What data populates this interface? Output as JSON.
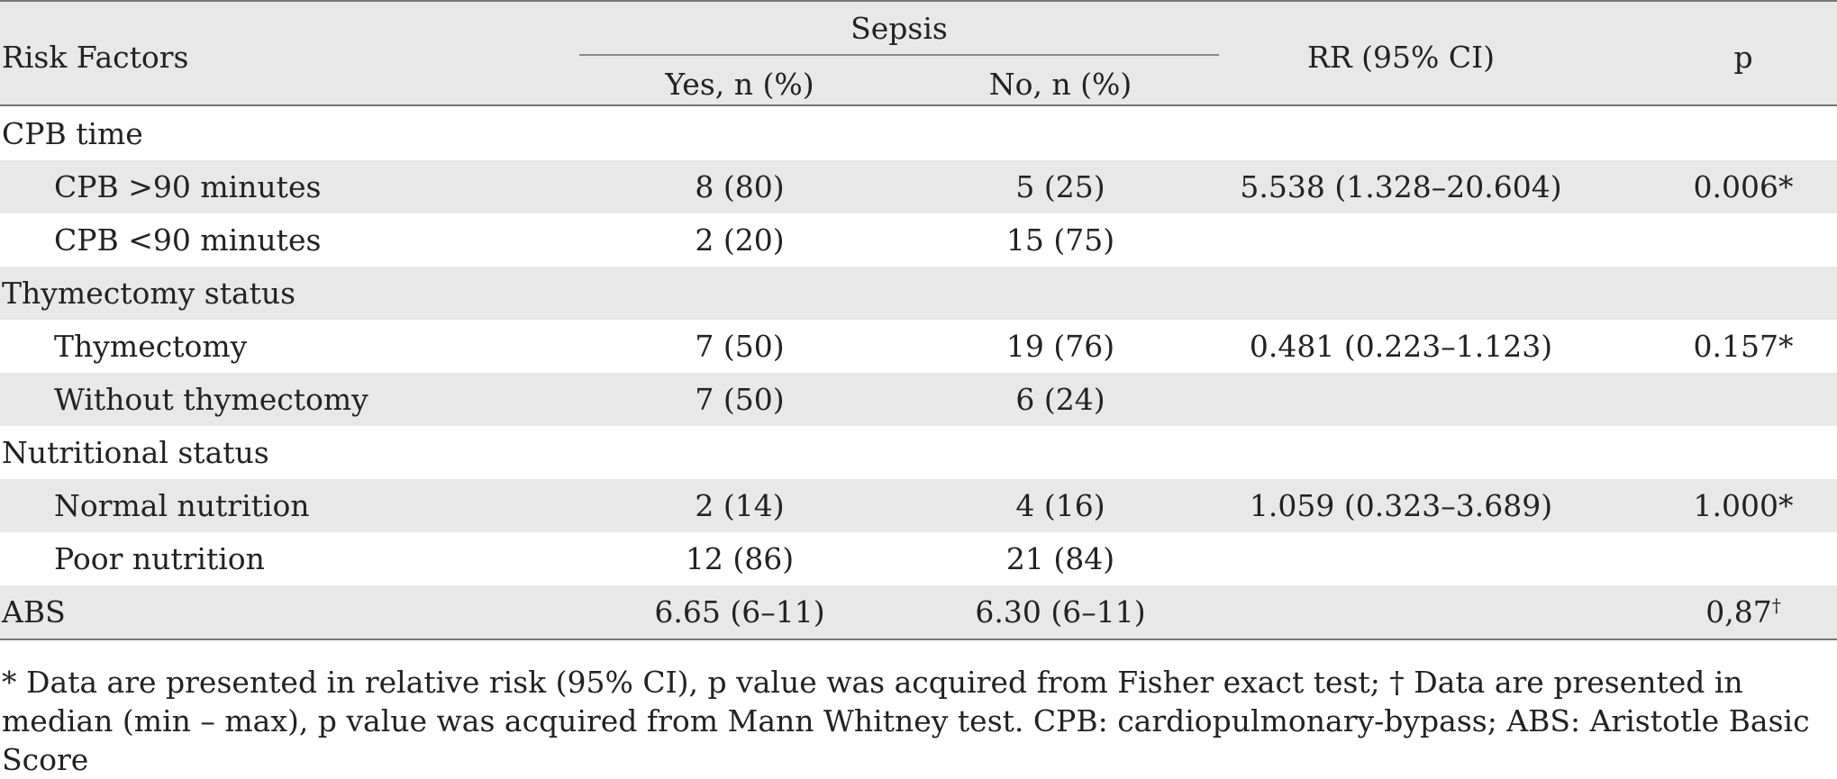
{
  "header": {
    "risk_factors": "Risk Factors",
    "sepsis": "Sepsis",
    "yes": "Yes, n (%)",
    "no": "No, n (%)",
    "rr": "RR (95% CI)",
    "p": "p"
  },
  "rows": [
    {
      "label": "CPB time",
      "yes": "",
      "no": "",
      "rr": "",
      "p": "",
      "p_mark": ""
    },
    {
      "label": "CPB >90 minutes",
      "yes": "8 (80)",
      "no": "5 (25)",
      "rr": "5.538 (1.328–20.604)",
      "p": "0.006*",
      "p_mark": ""
    },
    {
      "label": "CPB <90 minutes",
      "yes": "2 (20)",
      "no": "15 (75)",
      "rr": "",
      "p": "",
      "p_mark": ""
    },
    {
      "label": "Thymectomy status",
      "yes": "",
      "no": "",
      "rr": "",
      "p": "",
      "p_mark": ""
    },
    {
      "label": "Thymectomy",
      "yes": "7 (50)",
      "no": "19 (76)",
      "rr": "0.481 (0.223–1.123)",
      "p": "0.157*",
      "p_mark": ""
    },
    {
      "label": "Without thymectomy",
      "yes": "7 (50)",
      "no": "6 (24)",
      "rr": "",
      "p": "",
      "p_mark": ""
    },
    {
      "label": "Nutritional status",
      "yes": "",
      "no": "",
      "rr": "",
      "p": "",
      "p_mark": ""
    },
    {
      "label": "Normal nutrition",
      "yes": "2 (14)",
      "no": "4 (16)",
      "rr": "1.059 (0.323–3.689)",
      "p": "1.000*",
      "p_mark": ""
    },
    {
      "label": "Poor nutrition",
      "yes": "12 (86)",
      "no": "21 (84)",
      "rr": "",
      "p": "",
      "p_mark": ""
    },
    {
      "label": "ABS",
      "yes": "6.65 (6–11)",
      "no": "6.30 (6–11)",
      "rr": "",
      "p": "0,87",
      "p_mark": "†"
    }
  ],
  "footnote": "* Data are presented in relative risk (95% CI), p value was acquired from Fisher exact test; † Data are presented in median (min – max), p value was acquired from Mann Whitney test. CPB: cardiopulmonary-bypass; ABS: Aristotle Basic Score"
}
